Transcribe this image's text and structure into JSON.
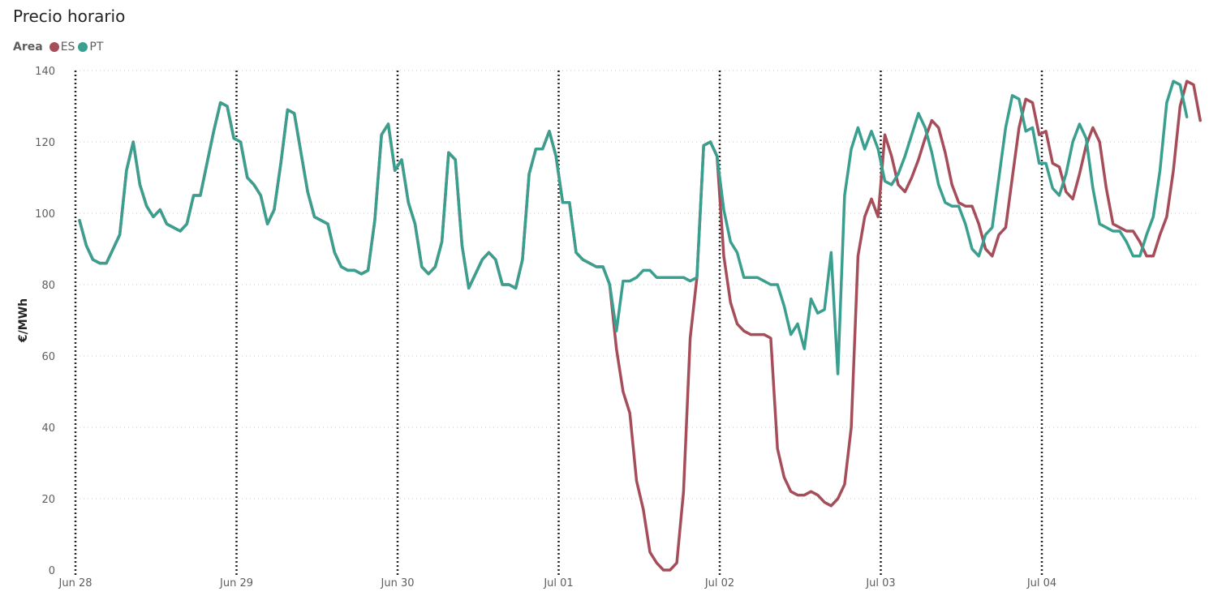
{
  "chart_data": {
    "type": "line",
    "title": "Precio horario",
    "legend_title": "Area",
    "legend_placement": "top-left",
    "ylabel": "€/MWh",
    "xlabel": "",
    "ylim": [
      0,
      140
    ],
    "y_ticks": [
      0,
      20,
      40,
      60,
      80,
      100,
      120,
      140
    ],
    "grid": true,
    "x_labels": [
      "Jun 28",
      "Jun 29",
      "Jun 30",
      "Jul 01",
      "Jul 02",
      "Jul 03",
      "Jul 04"
    ],
    "series": [
      {
        "name": "ES",
        "color": "#a64d5a",
        "values": [
          98,
          91,
          87,
          86,
          86,
          90,
          94,
          112,
          120,
          108,
          102,
          99,
          101,
          97,
          96,
          95,
          97,
          105,
          105,
          114,
          123,
          131,
          130,
          121,
          120,
          110,
          108,
          105,
          97,
          101,
          114,
          129,
          128,
          117,
          106,
          99,
          98,
          97,
          89,
          85,
          84,
          84,
          83,
          84,
          98,
          122,
          125,
          112,
          115,
          103,
          97,
          85,
          83,
          85,
          92,
          117,
          115,
          91,
          79,
          83,
          87,
          89,
          87,
          80,
          80,
          79,
          87,
          111,
          118,
          118,
          123,
          116,
          103,
          103,
          89,
          87,
          86,
          85,
          85,
          80,
          62,
          50,
          44,
          25,
          17,
          5,
          2,
          0,
          0,
          2,
          22,
          65,
          82,
          119,
          120,
          116,
          88,
          75,
          69,
          67,
          66,
          66,
          66,
          65,
          34,
          26,
          22,
          21,
          21,
          22,
          21,
          19,
          18,
          20,
          24,
          40,
          88,
          99,
          104,
          99,
          122,
          116,
          108,
          106,
          110,
          115,
          121,
          126,
          124,
          117,
          108,
          103,
          102,
          102,
          97,
          90,
          88,
          94,
          96,
          110,
          124,
          132,
          131,
          122,
          123,
          114,
          113,
          106,
          104,
          111,
          119,
          124,
          120,
          107,
          97,
          96,
          95,
          95,
          92,
          88,
          88,
          94,
          99,
          112,
          130,
          137,
          136,
          126
        ]
      },
      {
        "name": "PT",
        "color": "#3a9f8f",
        "values": [
          98,
          91,
          87,
          86,
          86,
          90,
          94,
          112,
          120,
          108,
          102,
          99,
          101,
          97,
          96,
          95,
          97,
          105,
          105,
          114,
          123,
          131,
          130,
          121,
          120,
          110,
          108,
          105,
          97,
          101,
          114,
          129,
          128,
          117,
          106,
          99,
          98,
          97,
          89,
          85,
          84,
          84,
          83,
          84,
          98,
          122,
          125,
          112,
          115,
          103,
          97,
          85,
          83,
          85,
          92,
          117,
          115,
          91,
          79,
          83,
          87,
          89,
          87,
          80,
          80,
          79,
          87,
          111,
          118,
          118,
          123,
          116,
          103,
          103,
          89,
          87,
          86,
          85,
          85,
          80,
          67,
          81,
          81,
          82,
          84,
          84,
          82,
          82,
          82,
          82,
          82,
          81,
          82,
          119,
          120,
          116,
          101,
          92,
          89,
          82,
          82,
          82,
          81,
          80,
          80,
          74,
          66,
          69,
          62,
          76,
          72,
          73,
          89,
          55,
          105,
          118,
          124,
          118,
          123,
          118,
          109,
          108,
          111,
          116,
          122,
          128,
          124,
          117,
          108,
          103,
          102,
          102,
          97,
          90,
          88,
          94,
          96,
          110,
          124,
          133,
          132,
          123,
          124,
          114,
          114,
          107,
          105,
          111,
          120,
          125,
          121,
          107,
          97,
          96,
          95,
          95,
          92,
          88,
          88,
          94,
          99,
          112,
          131,
          137,
          136,
          127
        ]
      }
    ]
  }
}
